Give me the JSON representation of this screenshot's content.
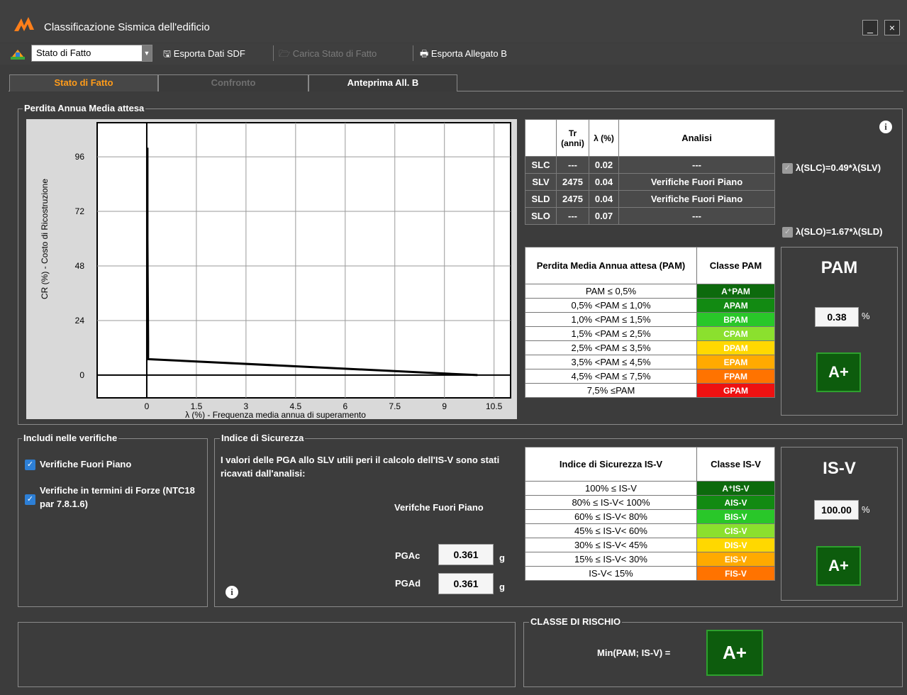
{
  "window": {
    "title": "Classificazione Sismica dell'edificio",
    "minimize": "_",
    "close": "×"
  },
  "toolbar": {
    "state_select": "Stato di Fatto",
    "export_sdf": "Esporta Dati SDF",
    "load_sdf": "Carica Stato di Fatto",
    "export_b": "Esporta Allegato B"
  },
  "tabs": [
    {
      "label": "Stato di Fatto"
    },
    {
      "label": "Confronto"
    },
    {
      "label": "Anteprima All. B"
    }
  ],
  "pam_group": {
    "label": "Perdita Annua Media attesa"
  },
  "chart_data": {
    "type": "line",
    "xlabel": "λ (%) - Frequenza media annua di superamento",
    "ylabel": "CR (%) - Costo di Ricostruzione",
    "x_ticks": [
      "0",
      "1.5",
      "3",
      "4.5",
      "6",
      "7.5",
      "9",
      "10.5"
    ],
    "y_ticks": [
      "96",
      "72",
      "48",
      "24",
      "0"
    ],
    "xlim": [
      -1.5,
      11
    ],
    "ylim": [
      -10,
      111
    ],
    "series": [
      {
        "x": [
          0.02,
          0.02,
          0.04,
          0.04,
          0.07,
          10
        ],
        "y": [
          100,
          60,
          15,
          7,
          7,
          0
        ]
      }
    ]
  },
  "analysis_table": {
    "headers": [
      "",
      "Tr (anni)",
      "λ (%)",
      "Analisi"
    ],
    "rows": [
      [
        "SLC",
        "---",
        "0.02",
        "---"
      ],
      [
        "SLV",
        "2475",
        "0.04",
        "Verifiche Fuori Piano"
      ],
      [
        "SLD",
        "2475",
        "0.04",
        "Verifiche Fuori Piano"
      ],
      [
        "SLO",
        "---",
        "0.07",
        "---"
      ]
    ]
  },
  "lambda_checks": [
    "λ(SLC)=0.49*λ(SLV)",
    "λ(SLO)=1.67*λ(SLD)"
  ],
  "pam_table": {
    "headers": [
      "Perdita Media Annua attesa (PAM)",
      "Classe PAM"
    ],
    "rows": [
      [
        "PAM ≤ 0,5%",
        "A⁺PAM",
        "c1"
      ],
      [
        "0,5% <PAM ≤ 1,0%",
        "APAM",
        "c2"
      ],
      [
        "1,0% <PAM ≤ 1,5%",
        "BPAM",
        "c3"
      ],
      [
        "1,5% <PAM ≤ 2,5%",
        "CPAM",
        "c4"
      ],
      [
        "2,5% <PAM ≤ 3,5%",
        "DPAM",
        "c5"
      ],
      [
        "3,5% <PAM ≤ 4,5%",
        "EPAM",
        "c6"
      ],
      [
        "4,5% <PAM ≤ 7,5%",
        "FPAM",
        "c7"
      ],
      [
        "7,5% ≤PAM",
        "GPAM",
        "c8"
      ]
    ]
  },
  "pam_result": {
    "title": "PAM",
    "value": "0.38",
    "unit": "%",
    "class": "A+"
  },
  "includi": {
    "label": "Includi nelle verifiche",
    "items": [
      "Verifiche Fuori Piano",
      "Verifiche in termini di Forze (NTC18 par 7.8.1.6)"
    ]
  },
  "indice": {
    "label": "Indice di Sicurezza",
    "description": "I valori delle PGA allo SLV utili peri il calcolo dell'IS-V sono stati ricavati dall'analisi:",
    "column": "Verifche Fuori Piano",
    "pgac_label": "PGAc",
    "pgac": "0.361",
    "pgad_label": "PGAd",
    "pgad": "0.361",
    "unit": "g"
  },
  "isv_table": {
    "headers": [
      "Indice di Sicurezza IS-V",
      "Classe IS-V"
    ],
    "rows": [
      [
        "100% ≤ IS-V",
        "A⁺IS-V",
        "c1"
      ],
      [
        "80% ≤ IS-V< 100%",
        "AIS-V",
        "c2"
      ],
      [
        "60% ≤ IS-V< 80%",
        "BIS-V",
        "c3"
      ],
      [
        "45% ≤ IS-V< 60%",
        "CIS-V",
        "c4"
      ],
      [
        "30% ≤ IS-V< 45%",
        "DIS-V",
        "c5"
      ],
      [
        "15% ≤ IS-V< 30%",
        "EIS-V",
        "c6"
      ],
      [
        "IS-V< 15%",
        "FIS-V",
        "c7"
      ]
    ]
  },
  "isv_result": {
    "title": "IS-V",
    "value": "100.00",
    "unit": "%",
    "class": "A+"
  },
  "rischio": {
    "label": "CLASSE DI RISCHIO",
    "formula": "Min(PAM; IS-V) =",
    "class": "A+"
  }
}
